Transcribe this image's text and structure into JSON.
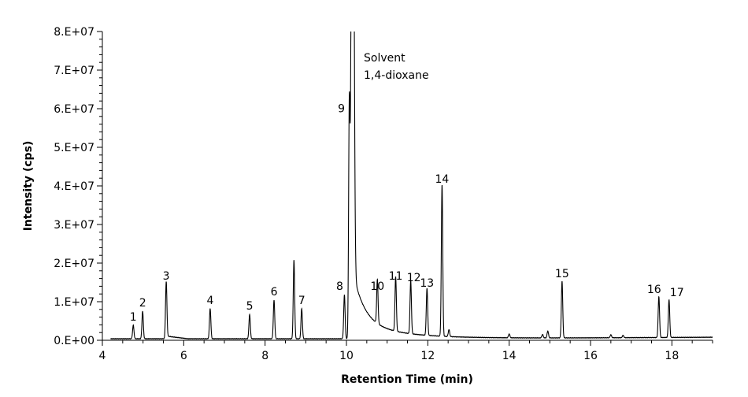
{
  "chart_data": {
    "type": "line",
    "title": "",
    "xlabel": "Retention Time (min)",
    "ylabel": "Intensity (cps)",
    "xlim": [
      4,
      19
    ],
    "ylim": [
      0,
      80000000
    ],
    "x_ticks": [
      4,
      6,
      8,
      10,
      12,
      14,
      16,
      18
    ],
    "x_tick_labels": [
      "4",
      "6",
      "8",
      "10",
      "12",
      "14",
      "16",
      "18"
    ],
    "y_ticks": [
      0,
      10000000,
      20000000,
      30000000,
      40000000,
      50000000,
      60000000,
      70000000,
      80000000
    ],
    "y_tick_labels": [
      "0.E+00",
      "1.E+07",
      "2.E+07",
      "3.E+07",
      "4.E+07",
      "5.E+07",
      "6.E+07",
      "7.E+07",
      "8.E+07"
    ],
    "grid": false,
    "line_color": "#000000",
    "solvent_annotation": [
      "Solvent",
      "1,4-dioxane"
    ],
    "solvent_peak": {
      "rt": 10.15,
      "intensity": 200000000
    },
    "peaks": [
      {
        "label": "1",
        "rt": 4.76,
        "intensity": 3500000
      },
      {
        "label": "2",
        "rt": 4.99,
        "intensity": 7100000
      },
      {
        "label": "3",
        "rt": 5.57,
        "intensity": 14100000
      },
      {
        "label": "4",
        "rt": 6.65,
        "intensity": 7800000
      },
      {
        "label": "5",
        "rt": 7.62,
        "intensity": 6300000
      },
      {
        "label": "6",
        "rt": 8.22,
        "intensity": 10000000
      },
      {
        "label": "",
        "rt": 8.71,
        "intensity": 20400000
      },
      {
        "label": "7",
        "rt": 8.9,
        "intensity": 7800000
      },
      {
        "label": "8",
        "rt": 9.95,
        "intensity": 11400000
      },
      {
        "label": "9",
        "rt": 10.07,
        "intensity": 57500000
      },
      {
        "label": "10",
        "rt": 10.76,
        "intensity": 11400000
      },
      {
        "label": "11",
        "rt": 11.21,
        "intensity": 14100000
      },
      {
        "label": "12",
        "rt": 11.58,
        "intensity": 13700000
      },
      {
        "label": "13",
        "rt": 11.98,
        "intensity": 12200000
      },
      {
        "label": "14",
        "rt": 12.35,
        "intensity": 39200000
      },
      {
        "label": "",
        "rt": 12.52,
        "intensity": 1800000
      },
      {
        "label": "",
        "rt": 14.0,
        "intensity": 1000000
      },
      {
        "label": "",
        "rt": 14.82,
        "intensity": 900000
      },
      {
        "label": "",
        "rt": 14.95,
        "intensity": 1800000
      },
      {
        "label": "15",
        "rt": 15.3,
        "intensity": 14700000
      },
      {
        "label": "",
        "rt": 16.5,
        "intensity": 800000
      },
      {
        "label": "",
        "rt": 16.8,
        "intensity": 600000
      },
      {
        "label": "16",
        "rt": 17.68,
        "intensity": 10600000
      },
      {
        "label": "17",
        "rt": 17.93,
        "intensity": 9800000
      }
    ]
  }
}
